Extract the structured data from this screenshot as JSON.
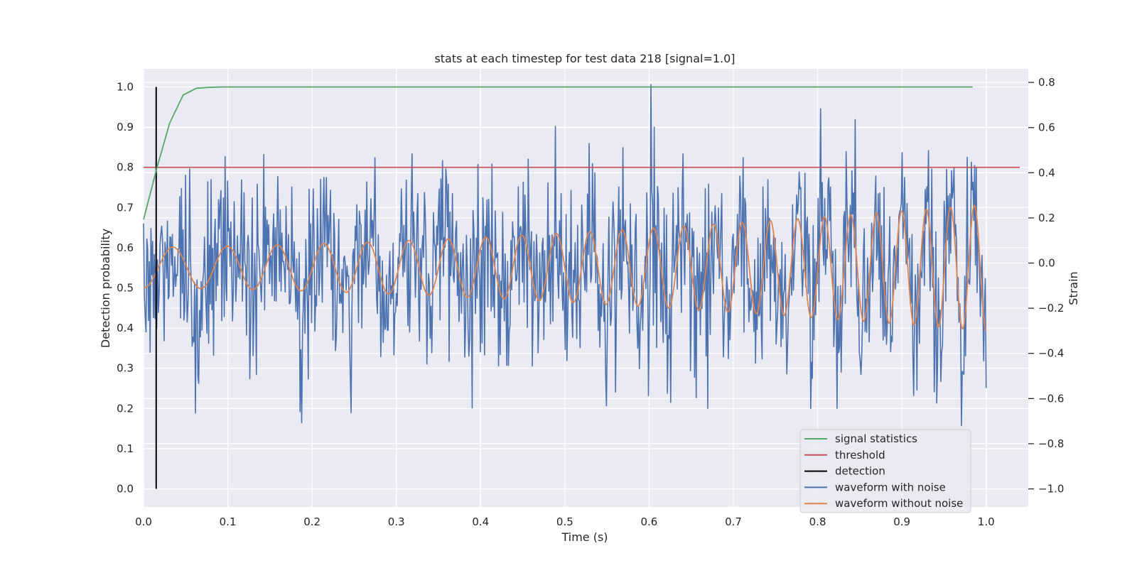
{
  "chart_data": {
    "type": "line",
    "title": "stats at each timestep for test data 218 [signal=1.0]",
    "xlabel": "Time (s)",
    "ylabel_left": "Detection probability",
    "ylabel_right": "Strain",
    "xlim": [
      0.0,
      1.05
    ],
    "ylim_left": [
      -0.045,
      1.045
    ],
    "ylim_right": [
      -1.08,
      0.86
    ],
    "x_ticks": [
      "0.0",
      "0.1",
      "0.2",
      "0.3",
      "0.4",
      "0.5",
      "0.6",
      "0.7",
      "0.8",
      "0.9",
      "1.0"
    ],
    "y_left_ticks": [
      "0.0",
      "0.1",
      "0.2",
      "0.3",
      "0.4",
      "0.5",
      "0.6",
      "0.7",
      "0.8",
      "0.9",
      "1.0"
    ],
    "y_right_ticks": [
      "−1.0",
      "−0.8",
      "−0.6",
      "−0.4",
      "−0.2",
      "0.0",
      "0.2",
      "0.4",
      "0.6",
      "0.8"
    ],
    "grid": true,
    "legend_position": "bottom-right",
    "legend": [
      {
        "label": "signal statistics",
        "color": "#55a868"
      },
      {
        "label": "threshold",
        "color": "#c44e52"
      },
      {
        "label": "detection",
        "color": "#000000"
      },
      {
        "label": "waveform with noise",
        "color": "#4c72b0"
      },
      {
        "label": "waveform without noise",
        "color": "#dd8452"
      }
    ],
    "signal_statistics": {
      "axis": "left",
      "x": [
        0.0,
        0.016,
        0.031,
        0.047,
        0.063,
        0.078,
        0.094,
        0.11,
        0.2,
        0.4,
        0.6,
        0.8,
        0.984
      ],
      "y": [
        0.67,
        0.8,
        0.91,
        0.98,
        0.997,
        0.999,
        1.0,
        1.0,
        1.0,
        1.0,
        1.0,
        1.0,
        1.0
      ]
    },
    "threshold": {
      "axis": "left",
      "y": 0.8,
      "x_range": [
        0.0,
        1.04
      ]
    },
    "detection": {
      "axis": "left",
      "x": 0.015,
      "y_range": [
        0.0,
        1.0
      ]
    },
    "waveform_without_noise": {
      "axis": "right",
      "x_range": [
        0.0,
        1.0
      ],
      "start_cycles_per_s": 14,
      "end_cycles_per_s": 36,
      "start_amplitude": 0.09,
      "end_amplitude": 0.28,
      "offset": -0.02
    },
    "waveform_with_noise": {
      "axis": "right",
      "x_range": [
        0.0,
        1.0
      ],
      "noise_std": 0.2,
      "min": -1.0,
      "max": 0.79
    }
  },
  "colors": {
    "plot_bg": "#eaeaf2",
    "grid": "#ffffff",
    "text": "#262626"
  }
}
